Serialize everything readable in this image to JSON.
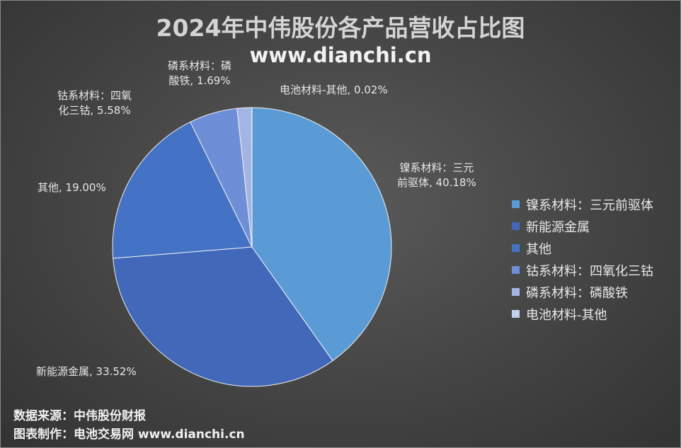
{
  "chart_data": {
    "type": "pie",
    "title": "2024年中伟股份各产品营收占比图",
    "subtitle": "www.dianchi.cn",
    "slices": [
      {
        "name": "镍系材料：三元前驱体",
        "value": 40.18,
        "color": "#5b9bd5",
        "label_line1": "镍系材料：三元",
        "label_line2": "前驱体, 40.18%"
      },
      {
        "name": "新能源金属",
        "value": 33.52,
        "color": "#4168b9",
        "label_line1": "新能源金属, 33.52%"
      },
      {
        "name": "其他",
        "value": 19.0,
        "color": "#4472c4",
        "label_line1": "其他, 19.00%"
      },
      {
        "name": "钴系材料：四氧化三钴",
        "value": 5.58,
        "color": "#6e8fd7",
        "label_line1": "钴系材料：四氧",
        "label_line2": "化三钴, 5.58%"
      },
      {
        "name": "磷系材料：磷酸铁",
        "value": 1.69,
        "color": "#a3b5e4",
        "label_line1": "磷系材料：磷",
        "label_line2": "酸铁, 1.69%"
      },
      {
        "name": "电池材料-其他",
        "value": 0.02,
        "color": "#c5d0ee",
        "label_line1": "电池材料-其他, 0.02%"
      }
    ],
    "legend_position": "right"
  },
  "footer": {
    "source": "数据来源：中伟股份财报",
    "maker": "图表制作：电池交易网 www.dianchi.cn"
  }
}
